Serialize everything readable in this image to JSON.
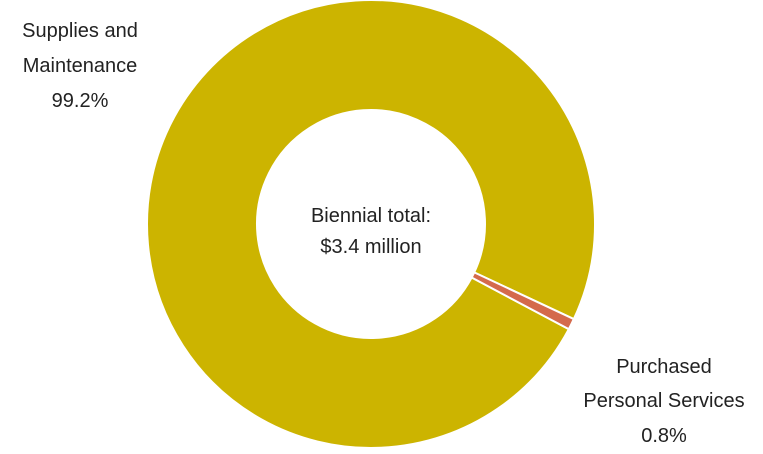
{
  "chart_data": {
    "type": "pie",
    "style": "donut",
    "center_text": [
      "Biennial total:",
      "$3.4 million"
    ],
    "slices": [
      {
        "label_lines": [
          "Supplies and",
          "Maintenance"
        ],
        "percent_label": "99.2%",
        "value": 99.2,
        "color": "#CCB400"
      },
      {
        "label_lines": [
          "Purchased",
          "Personal Services"
        ],
        "percent_label": "0.8%",
        "value": 0.8,
        "color": "#D46A4C"
      }
    ],
    "legend": false,
    "grid": false
  }
}
